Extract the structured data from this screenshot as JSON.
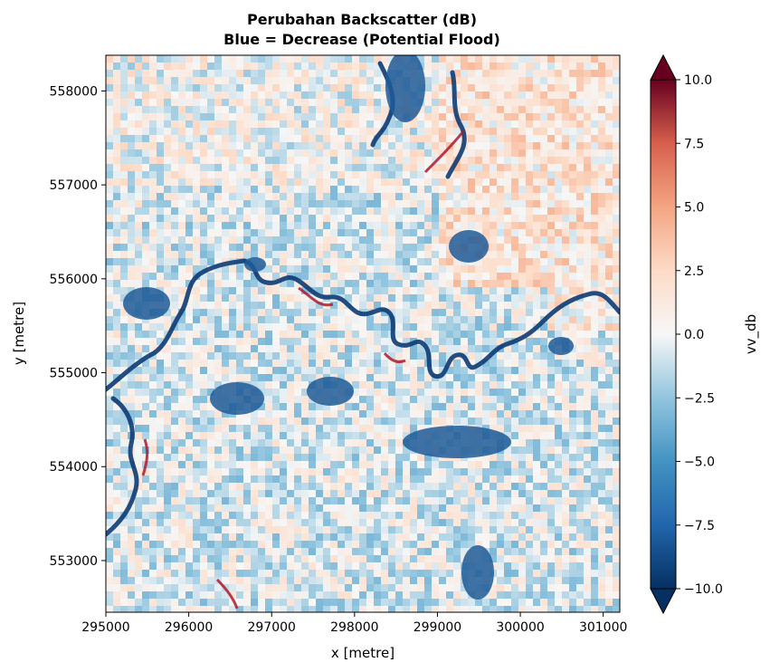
{
  "chart_data": {
    "type": "heatmap",
    "title": "Perubahan Backscatter (dB)\nBlue = Decrease (Potential Flood)",
    "title_lines": [
      "Perubahan Backscatter (dB)",
      "Blue = Decrease (Potential Flood)"
    ],
    "xlabel": "x [metre]",
    "ylabel": "y [metre]",
    "xlim": [
      295000,
      301200
    ],
    "ylim": [
      552450,
      558380
    ],
    "xticks": [
      295000,
      296000,
      297000,
      298000,
      299000,
      300000,
      301000
    ],
    "xtick_labels": [
      "295000",
      "296000",
      "297000",
      "298000",
      "299000",
      "300000",
      "301000"
    ],
    "yticks": [
      553000,
      554000,
      555000,
      556000,
      557000,
      558000
    ],
    "ytick_labels": [
      "553000",
      "554000",
      "555000",
      "556000",
      "557000",
      "558000"
    ],
    "colormap": "RdBu_r",
    "colorbar": {
      "label": "vv_db",
      "vmin": -10.0,
      "vmax": 10.0,
      "extend": "both",
      "ticks": [
        10.0,
        7.5,
        5.0,
        2.5,
        0.0,
        -2.5,
        -5.0,
        -7.5,
        -10.0
      ],
      "tick_labels": [
        "10.0",
        "7.5",
        "5.0",
        "2.5",
        "0.0",
        "−2.5",
        "−5.0",
        "−7.5",
        "−10.0"
      ]
    },
    "grid": false,
    "colors": {
      "deep_blue": "#053061",
      "blue": "#2166ac",
      "light_blue": "#92c5de",
      "neutral": "#f7f7f7",
      "light_red": "#f4a582",
      "red": "#b2182b",
      "deep_red": "#67001f"
    }
  }
}
